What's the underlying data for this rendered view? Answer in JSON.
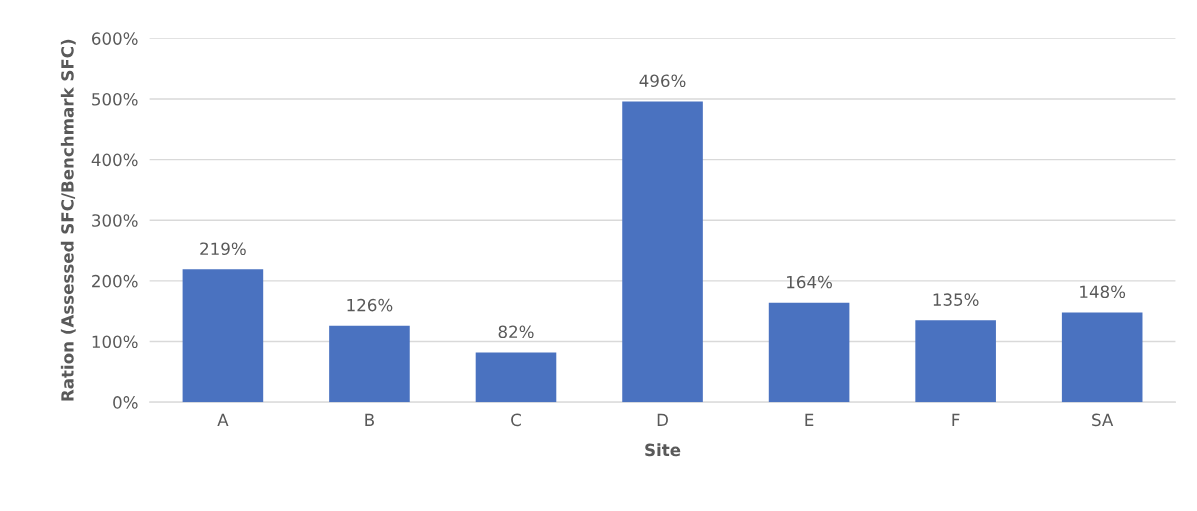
{
  "chart_data": {
    "type": "bar",
    "xlabel": "Site",
    "ylabel": "Ration (Assessed SFC/Benchmark SFC)",
    "categories": [
      "A",
      "B",
      "C",
      "D",
      "E",
      "F",
      "SA"
    ],
    "values": [
      219,
      126,
      82,
      496,
      164,
      135,
      148
    ],
    "value_labels": [
      "219%",
      "126%",
      "82%",
      "496%",
      "164%",
      "135%",
      "148%"
    ],
    "color": "#4a72c0",
    "ylim": [
      0,
      600
    ],
    "yticks": [
      {
        "value": 0,
        "label": "0%"
      },
      {
        "value": 100,
        "label": "100%"
      },
      {
        "value": 200,
        "label": "200%"
      },
      {
        "value": 300,
        "label": "300%"
      },
      {
        "value": 400,
        "label": "400%"
      },
      {
        "value": 500,
        "label": "500%"
      },
      {
        "value": 600,
        "label": "600%"
      }
    ],
    "grid": "y",
    "legend": false
  }
}
